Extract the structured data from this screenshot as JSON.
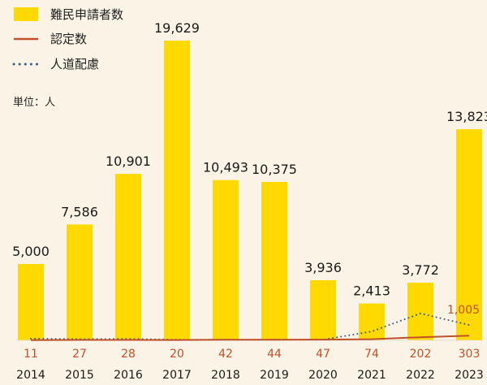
{
  "chart_data": {
    "type": "bar",
    "categories": [
      "2014",
      "2015",
      "2016",
      "2017",
      "2018",
      "2019",
      "2020",
      "2021",
      "2022",
      "2023"
    ],
    "series": [
      {
        "name": "難民申請者数",
        "type": "bar",
        "color": "#ffd900",
        "values": [
          5000,
          7586,
          10901,
          19629,
          10493,
          10375,
          3936,
          2413,
          3772,
          13823
        ],
        "labels": [
          "5,000",
          "7,586",
          "10,901",
          "19,629",
          "10,493",
          "10,375",
          "3,936",
          "2,413",
          "3,772",
          "13,823"
        ]
      },
      {
        "name": "認定数",
        "type": "line",
        "color": "#c0502a",
        "values": [
          11,
          27,
          28,
          20,
          42,
          44,
          47,
          74,
          202,
          303
        ],
        "labels": [
          "11",
          "27",
          "28",
          "20",
          "42",
          "44",
          "47",
          "74",
          "202",
          "303"
        ]
      },
      {
        "name": "人道配慮",
        "type": "line",
        "style": "dotted",
        "color": "#3e5f86",
        "values": [
          110,
          79,
          97,
          45,
          40,
          37,
          44,
          580,
          1760,
          1005
        ],
        "labels": [
          "",
          "",
          "",
          "",
          "",
          "",
          "",
          "",
          "",
          "1,005"
        ]
      }
    ],
    "unit_label": "単位：人",
    "ylim": [
      0,
      20000
    ],
    "legend_position": "top-left",
    "grid": false
  }
}
